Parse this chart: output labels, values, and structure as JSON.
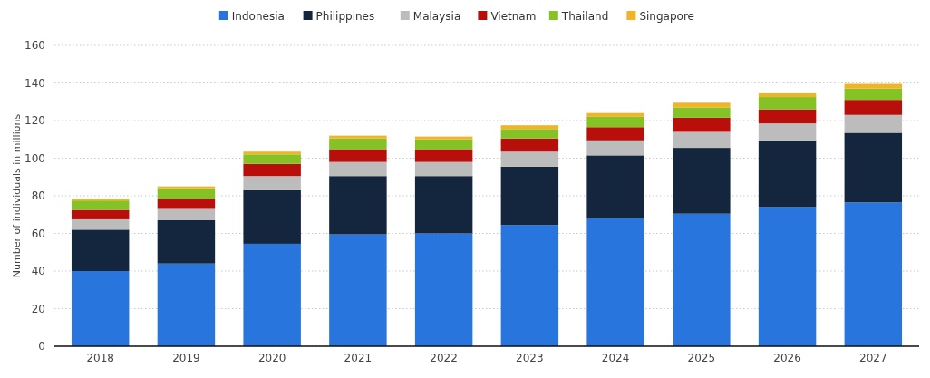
{
  "chart_data": {
    "type": "bar",
    "stacked": true,
    "ylabel": "Number of individuals in millions",
    "categories": [
      "2018",
      "2019",
      "2020",
      "2021",
      "2022",
      "2023",
      "2024",
      "2025",
      "2026",
      "2027"
    ],
    "series": [
      {
        "name": "Indonesia",
        "color": "#2876dd",
        "values": [
          40,
          44,
          54.5,
          59.5,
          60,
          64.5,
          68,
          70.5,
          74,
          76.5
        ]
      },
      {
        "name": "Philippines",
        "color": "#13263d",
        "values": [
          22,
          23,
          28.5,
          31,
          30.5,
          31,
          33.5,
          35,
          35.5,
          37
        ]
      },
      {
        "name": "Malaysia",
        "color": "#bcbcbc",
        "values": [
          5.5,
          6,
          7.5,
          7.5,
          7.5,
          8,
          8,
          8.5,
          9,
          9.5
        ]
      },
      {
        "name": "Vietnam",
        "color": "#b80f0a",
        "values": [
          5,
          5.5,
          6.5,
          6.5,
          6.5,
          7,
          7,
          7.5,
          7.5,
          8
        ]
      },
      {
        "name": "Thailand",
        "color": "#84c225",
        "values": [
          5,
          5.5,
          5,
          6,
          5.5,
          5,
          5.5,
          5.5,
          6.5,
          6
        ]
      },
      {
        "name": "Singapore",
        "color": "#f0b429",
        "values": [
          1,
          1,
          1.5,
          1.5,
          1.5,
          2,
          2,
          2.5,
          2,
          2.5
        ]
      }
    ],
    "ylim": [
      0,
      160
    ],
    "yticks": [
      0,
      20,
      40,
      60,
      80,
      100,
      120,
      140,
      160
    ],
    "grid": "y",
    "legend": "top"
  }
}
